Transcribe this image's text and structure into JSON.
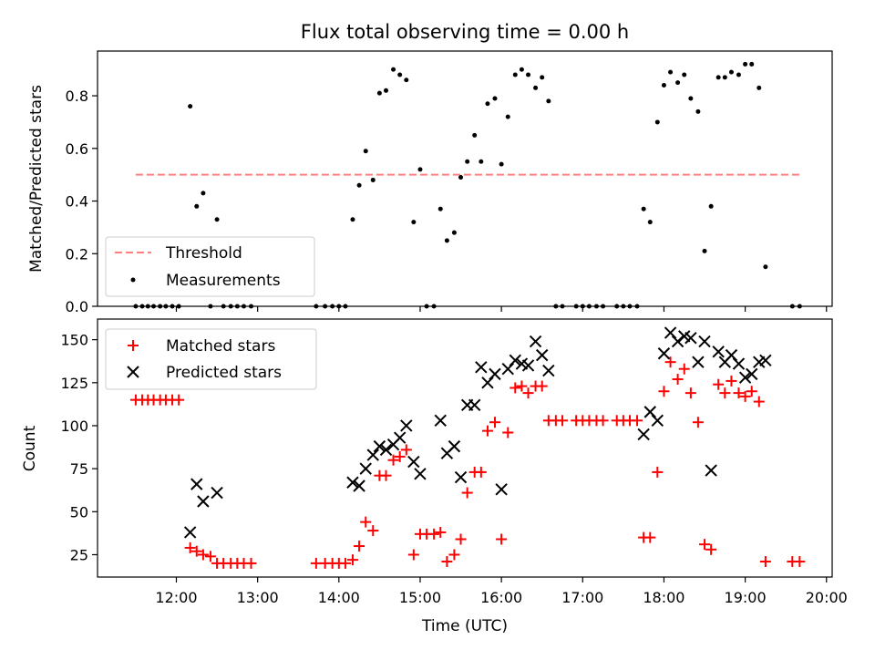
{
  "title": "Flux total observing time = 0.00 h",
  "chart_data": [
    {
      "type": "scatter",
      "ylabel": "Matched/Predicted stars",
      "xlim": [
        11.03,
        20.07
      ],
      "ylim": [
        0,
        0.97
      ],
      "yticks": [
        0.0,
        0.2,
        0.4,
        0.6,
        0.8
      ],
      "ytick_labels": [
        "0.0",
        "0.2",
        "0.4",
        "0.6",
        "0.8"
      ],
      "legend": {
        "placement": "lower-left",
        "threshold_label": "Threshold",
        "measurements_label": "Measurements"
      },
      "colors": {
        "threshold": "#ff7f7f",
        "measurements": "#000000"
      },
      "threshold": {
        "value": 0.5,
        "x": [
          11.5,
          19.67
        ]
      },
      "measurements": [
        [
          11.5,
          0
        ],
        [
          11.58,
          0
        ],
        [
          11.65,
          0
        ],
        [
          11.72,
          0
        ],
        [
          11.8,
          0
        ],
        [
          11.87,
          0
        ],
        [
          11.95,
          0
        ],
        [
          12.03,
          0
        ],
        [
          12.17,
          0.76
        ],
        [
          12.25,
          0.38
        ],
        [
          12.33,
          0.43
        ],
        [
          12.42,
          0
        ],
        [
          12.5,
          0.33
        ],
        [
          12.58,
          0
        ],
        [
          12.67,
          0
        ],
        [
          12.75,
          0
        ],
        [
          12.83,
          0
        ],
        [
          12.92,
          0
        ],
        [
          13.72,
          0
        ],
        [
          13.83,
          0
        ],
        [
          13.92,
          0
        ],
        [
          14.0,
          0
        ],
        [
          14.08,
          0
        ],
        [
          14.17,
          0.33
        ],
        [
          14.25,
          0.46
        ],
        [
          14.33,
          0.59
        ],
        [
          14.42,
          0.48
        ],
        [
          14.5,
          0.81
        ],
        [
          14.58,
          0.82
        ],
        [
          14.67,
          0.9
        ],
        [
          14.75,
          0.88
        ],
        [
          14.83,
          0.86
        ],
        [
          14.92,
          0.32
        ],
        [
          15.0,
          0.52
        ],
        [
          15.08,
          0
        ],
        [
          15.17,
          0
        ],
        [
          15.25,
          0.37
        ],
        [
          15.33,
          0.25
        ],
        [
          15.42,
          0.28
        ],
        [
          15.5,
          0.49
        ],
        [
          15.58,
          0.55
        ],
        [
          15.67,
          0.65
        ],
        [
          15.75,
          0.55
        ],
        [
          15.83,
          0.77
        ],
        [
          15.92,
          0.79
        ],
        [
          16.0,
          0.54
        ],
        [
          16.08,
          0.72
        ],
        [
          16.17,
          0.88
        ],
        [
          16.25,
          0.9
        ],
        [
          16.33,
          0.88
        ],
        [
          16.42,
          0.83
        ],
        [
          16.5,
          0.87
        ],
        [
          16.58,
          0.78
        ],
        [
          16.67,
          0
        ],
        [
          16.75,
          0
        ],
        [
          16.92,
          0
        ],
        [
          17.0,
          0
        ],
        [
          17.08,
          0
        ],
        [
          17.17,
          0
        ],
        [
          17.25,
          0
        ],
        [
          17.42,
          0
        ],
        [
          17.5,
          0
        ],
        [
          17.58,
          0
        ],
        [
          17.67,
          0
        ],
        [
          17.75,
          0.37
        ],
        [
          17.83,
          0.32
        ],
        [
          17.92,
          0.7
        ],
        [
          18.0,
          0.84
        ],
        [
          18.08,
          0.89
        ],
        [
          18.17,
          0.85
        ],
        [
          18.25,
          0.88
        ],
        [
          18.33,
          0.79
        ],
        [
          18.42,
          0.74
        ],
        [
          18.5,
          0.21
        ],
        [
          18.58,
          0.38
        ],
        [
          18.67,
          0.87
        ],
        [
          18.75,
          0.87
        ],
        [
          18.83,
          0.89
        ],
        [
          18.92,
          0.88
        ],
        [
          19.0,
          0.92
        ],
        [
          19.08,
          0.92
        ],
        [
          19.17,
          0.83
        ],
        [
          19.25,
          0.15
        ],
        [
          19.58,
          0
        ],
        [
          19.67,
          0
        ]
      ]
    },
    {
      "type": "scatter",
      "xlabel": "Time (UTC)",
      "ylabel": "Count",
      "xlim": [
        11.03,
        20.07
      ],
      "ylim": [
        12,
        162
      ],
      "xticks": [
        12,
        13,
        14,
        15,
        16,
        17,
        18,
        19,
        20
      ],
      "xtick_labels": [
        "12:00",
        "13:00",
        "14:00",
        "15:00",
        "16:00",
        "17:00",
        "18:00",
        "19:00",
        "20:00"
      ],
      "yticks": [
        25,
        50,
        75,
        100,
        125,
        150
      ],
      "ytick_labels": [
        "25",
        "50",
        "75",
        "100",
        "125",
        "150"
      ],
      "legend": {
        "placement": "top-left"
      },
      "colors": {
        "matched": "#ff0000",
        "predicted": "#000000"
      },
      "series": [
        {
          "name": "Matched stars",
          "marker": "plus",
          "points": [
            [
              11.5,
              115
            ],
            [
              11.58,
              115
            ],
            [
              11.65,
              115
            ],
            [
              11.72,
              115
            ],
            [
              11.8,
              115
            ],
            [
              11.87,
              115
            ],
            [
              11.95,
              115
            ],
            [
              12.03,
              115
            ],
            [
              12.17,
              29
            ],
            [
              12.25,
              27
            ],
            [
              12.33,
              25
            ],
            [
              12.42,
              24
            ],
            [
              12.5,
              20
            ],
            [
              12.58,
              20
            ],
            [
              12.67,
              20
            ],
            [
              12.75,
              20
            ],
            [
              12.83,
              20
            ],
            [
              12.92,
              20
            ],
            [
              13.72,
              20
            ],
            [
              13.83,
              20
            ],
            [
              13.92,
              20
            ],
            [
              14.0,
              20
            ],
            [
              14.08,
              20
            ],
            [
              14.17,
              22
            ],
            [
              14.25,
              30
            ],
            [
              14.33,
              44
            ],
            [
              14.42,
              39
            ],
            [
              14.5,
              71
            ],
            [
              14.58,
              71
            ],
            [
              14.67,
              80
            ],
            [
              14.75,
              82
            ],
            [
              14.83,
              86
            ],
            [
              14.92,
              25
            ],
            [
              15.0,
              37
            ],
            [
              15.08,
              37
            ],
            [
              15.17,
              37
            ],
            [
              15.25,
              38
            ],
            [
              15.33,
              21
            ],
            [
              15.42,
              25
            ],
            [
              15.5,
              34
            ],
            [
              15.58,
              61
            ],
            [
              15.67,
              73
            ],
            [
              15.75,
              73
            ],
            [
              15.83,
              97
            ],
            [
              15.92,
              102
            ],
            [
              16.0,
              34
            ],
            [
              16.08,
              96
            ],
            [
              16.17,
              122
            ],
            [
              16.25,
              123
            ],
            [
              16.33,
              119
            ],
            [
              16.42,
              123
            ],
            [
              16.5,
              123
            ],
            [
              16.58,
              103
            ],
            [
              16.67,
              103
            ],
            [
              16.75,
              103
            ],
            [
              16.92,
              103
            ],
            [
              17.0,
              103
            ],
            [
              17.08,
              103
            ],
            [
              17.17,
              103
            ],
            [
              17.25,
              103
            ],
            [
              17.42,
              103
            ],
            [
              17.5,
              103
            ],
            [
              17.58,
              103
            ],
            [
              17.67,
              103
            ],
            [
              17.75,
              35
            ],
            [
              17.83,
              35
            ],
            [
              17.92,
              73
            ],
            [
              18.0,
              120
            ],
            [
              18.08,
              137
            ],
            [
              18.17,
              127
            ],
            [
              18.25,
              133
            ],
            [
              18.33,
              119
            ],
            [
              18.42,
              102
            ],
            [
              18.5,
              31
            ],
            [
              18.58,
              28
            ],
            [
              18.67,
              124
            ],
            [
              18.75,
              119
            ],
            [
              18.83,
              126
            ],
            [
              18.92,
              119
            ],
            [
              19.0,
              117
            ],
            [
              19.08,
              120
            ],
            [
              19.17,
              114
            ],
            [
              19.25,
              21
            ],
            [
              19.58,
              21
            ],
            [
              19.67,
              21
            ]
          ]
        },
        {
          "name": "Predicted stars",
          "marker": "x",
          "points": [
            [
              12.17,
              38
            ],
            [
              12.25,
              66
            ],
            [
              12.33,
              56
            ],
            [
              12.5,
              61
            ],
            [
              14.17,
              67
            ],
            [
              14.25,
              65
            ],
            [
              14.33,
              75
            ],
            [
              14.42,
              83
            ],
            [
              14.5,
              88
            ],
            [
              14.58,
              86
            ],
            [
              14.67,
              89
            ],
            [
              14.75,
              93
            ],
            [
              14.83,
              100
            ],
            [
              14.92,
              79
            ],
            [
              15.0,
              72
            ],
            [
              15.25,
              103
            ],
            [
              15.33,
              84
            ],
            [
              15.42,
              88
            ],
            [
              15.5,
              70
            ],
            [
              15.58,
              112
            ],
            [
              15.67,
              112
            ],
            [
              15.75,
              134
            ],
            [
              15.83,
              125
            ],
            [
              15.92,
              130
            ],
            [
              16.0,
              63
            ],
            [
              16.08,
              133
            ],
            [
              16.17,
              138
            ],
            [
              16.25,
              136
            ],
            [
              16.33,
              135
            ],
            [
              16.42,
              149
            ],
            [
              16.5,
              141
            ],
            [
              16.58,
              132
            ],
            [
              17.75,
              95
            ],
            [
              17.83,
              108
            ],
            [
              17.92,
              103
            ],
            [
              18.0,
              142
            ],
            [
              18.08,
              154
            ],
            [
              18.17,
              149
            ],
            [
              18.25,
              152
            ],
            [
              18.33,
              151
            ],
            [
              18.42,
              137
            ],
            [
              18.5,
              149
            ],
            [
              18.58,
              74
            ],
            [
              18.67,
              143
            ],
            [
              18.75,
              137
            ],
            [
              18.83,
              141
            ],
            [
              18.92,
              136
            ],
            [
              19.0,
              128
            ],
            [
              19.08,
              130
            ],
            [
              19.17,
              137
            ],
            [
              19.25,
              138
            ]
          ]
        }
      ]
    }
  ]
}
